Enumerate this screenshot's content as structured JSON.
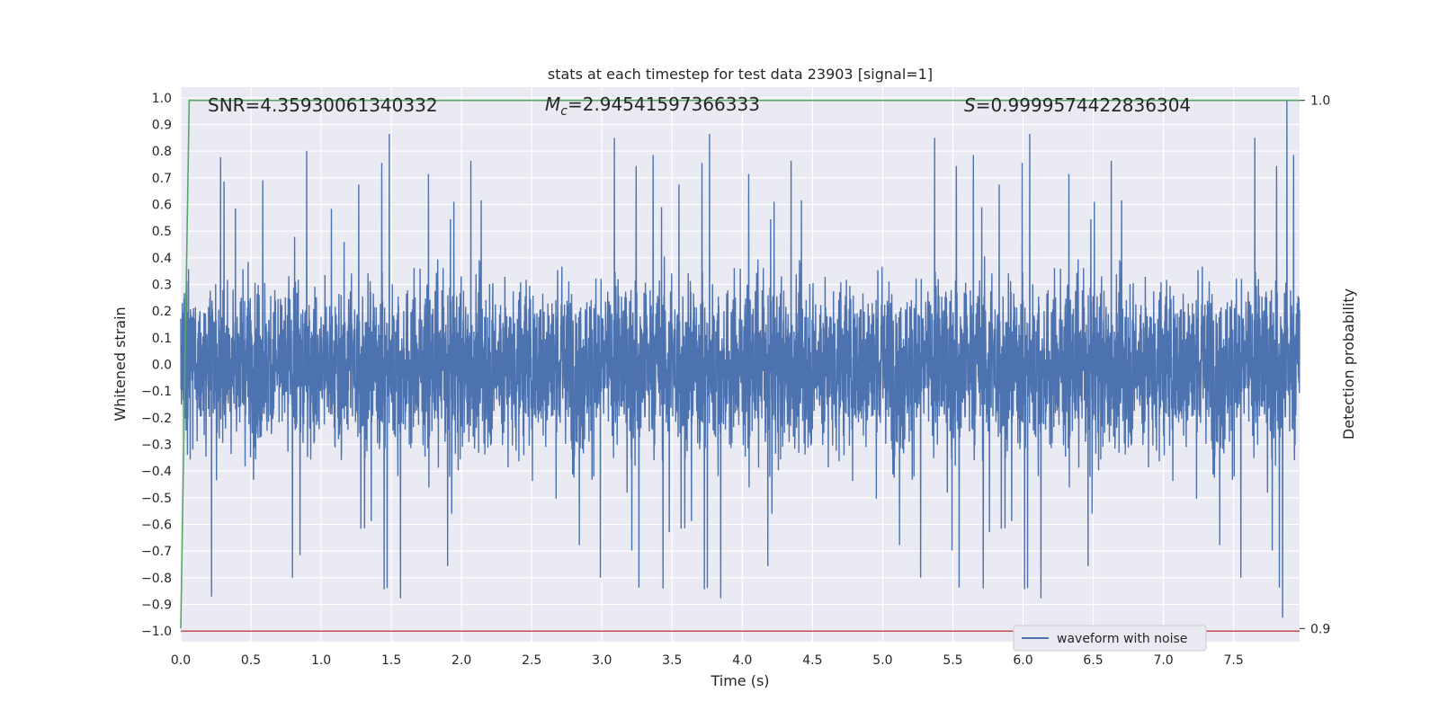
{
  "chart_data": {
    "type": "line",
    "title": "stats at each timestep for test data 23903 [signal=1]",
    "xlabel": "Time (s)",
    "ylabel": "Whitened strain",
    "y2label": "Detection probability",
    "xlim": [
      0.0,
      7.97
    ],
    "ylim": [
      -1.04,
      1.04
    ],
    "y2lim": [
      0.8975,
      1.0025
    ],
    "xticks": [
      "0.0",
      "0.5",
      "1.0",
      "1.5",
      "2.0",
      "2.5",
      "3.0",
      "3.5",
      "4.0",
      "4.5",
      "5.0",
      "5.5",
      "6.0",
      "6.5",
      "7.0",
      "7.5"
    ],
    "yticks": [
      "1.0",
      "0.9",
      "0.8",
      "0.7",
      "0.6",
      "0.5",
      "0.4",
      "0.3",
      "0.2",
      "0.1",
      "0.0",
      "−0.1",
      "−0.2",
      "−0.3",
      "−0.4",
      "−0.5",
      "−0.6",
      "−0.7",
      "−0.8",
      "−0.9",
      "−1.0"
    ],
    "y2ticks": [
      "1.0",
      "0.9"
    ],
    "annotations": {
      "snr": "SNR=4.35930061340332",
      "mc_symbol": "M",
      "mc_sub": "c",
      "mc_value": "=2.94541597366333",
      "s_symbol": "S",
      "s_value": "=0.9999574422836304"
    },
    "legend": {
      "label": "waveform with noise",
      "position": "lower-right"
    },
    "grid": true,
    "colors": {
      "waveform": "#4c72b0",
      "probability": "#55a868",
      "threshold": "#c44e52",
      "background": "#eaeaf2"
    },
    "series": [
      {
        "name": "waveform with noise",
        "kind": "noise",
        "axis": "left",
        "amplitude": 0.3,
        "peaks_max": 0.99,
        "peaks_min": -0.95
      },
      {
        "axis": "right",
        "x": [
          0.0,
          0.06,
          7.97
        ],
        "y": [
          0.9,
          1.0,
          1.0
        ]
      },
      {
        "axis": "right",
        "y": [
          0.8995,
          0.8995
        ],
        "x": [
          0.0,
          7.97
        ]
      }
    ]
  }
}
